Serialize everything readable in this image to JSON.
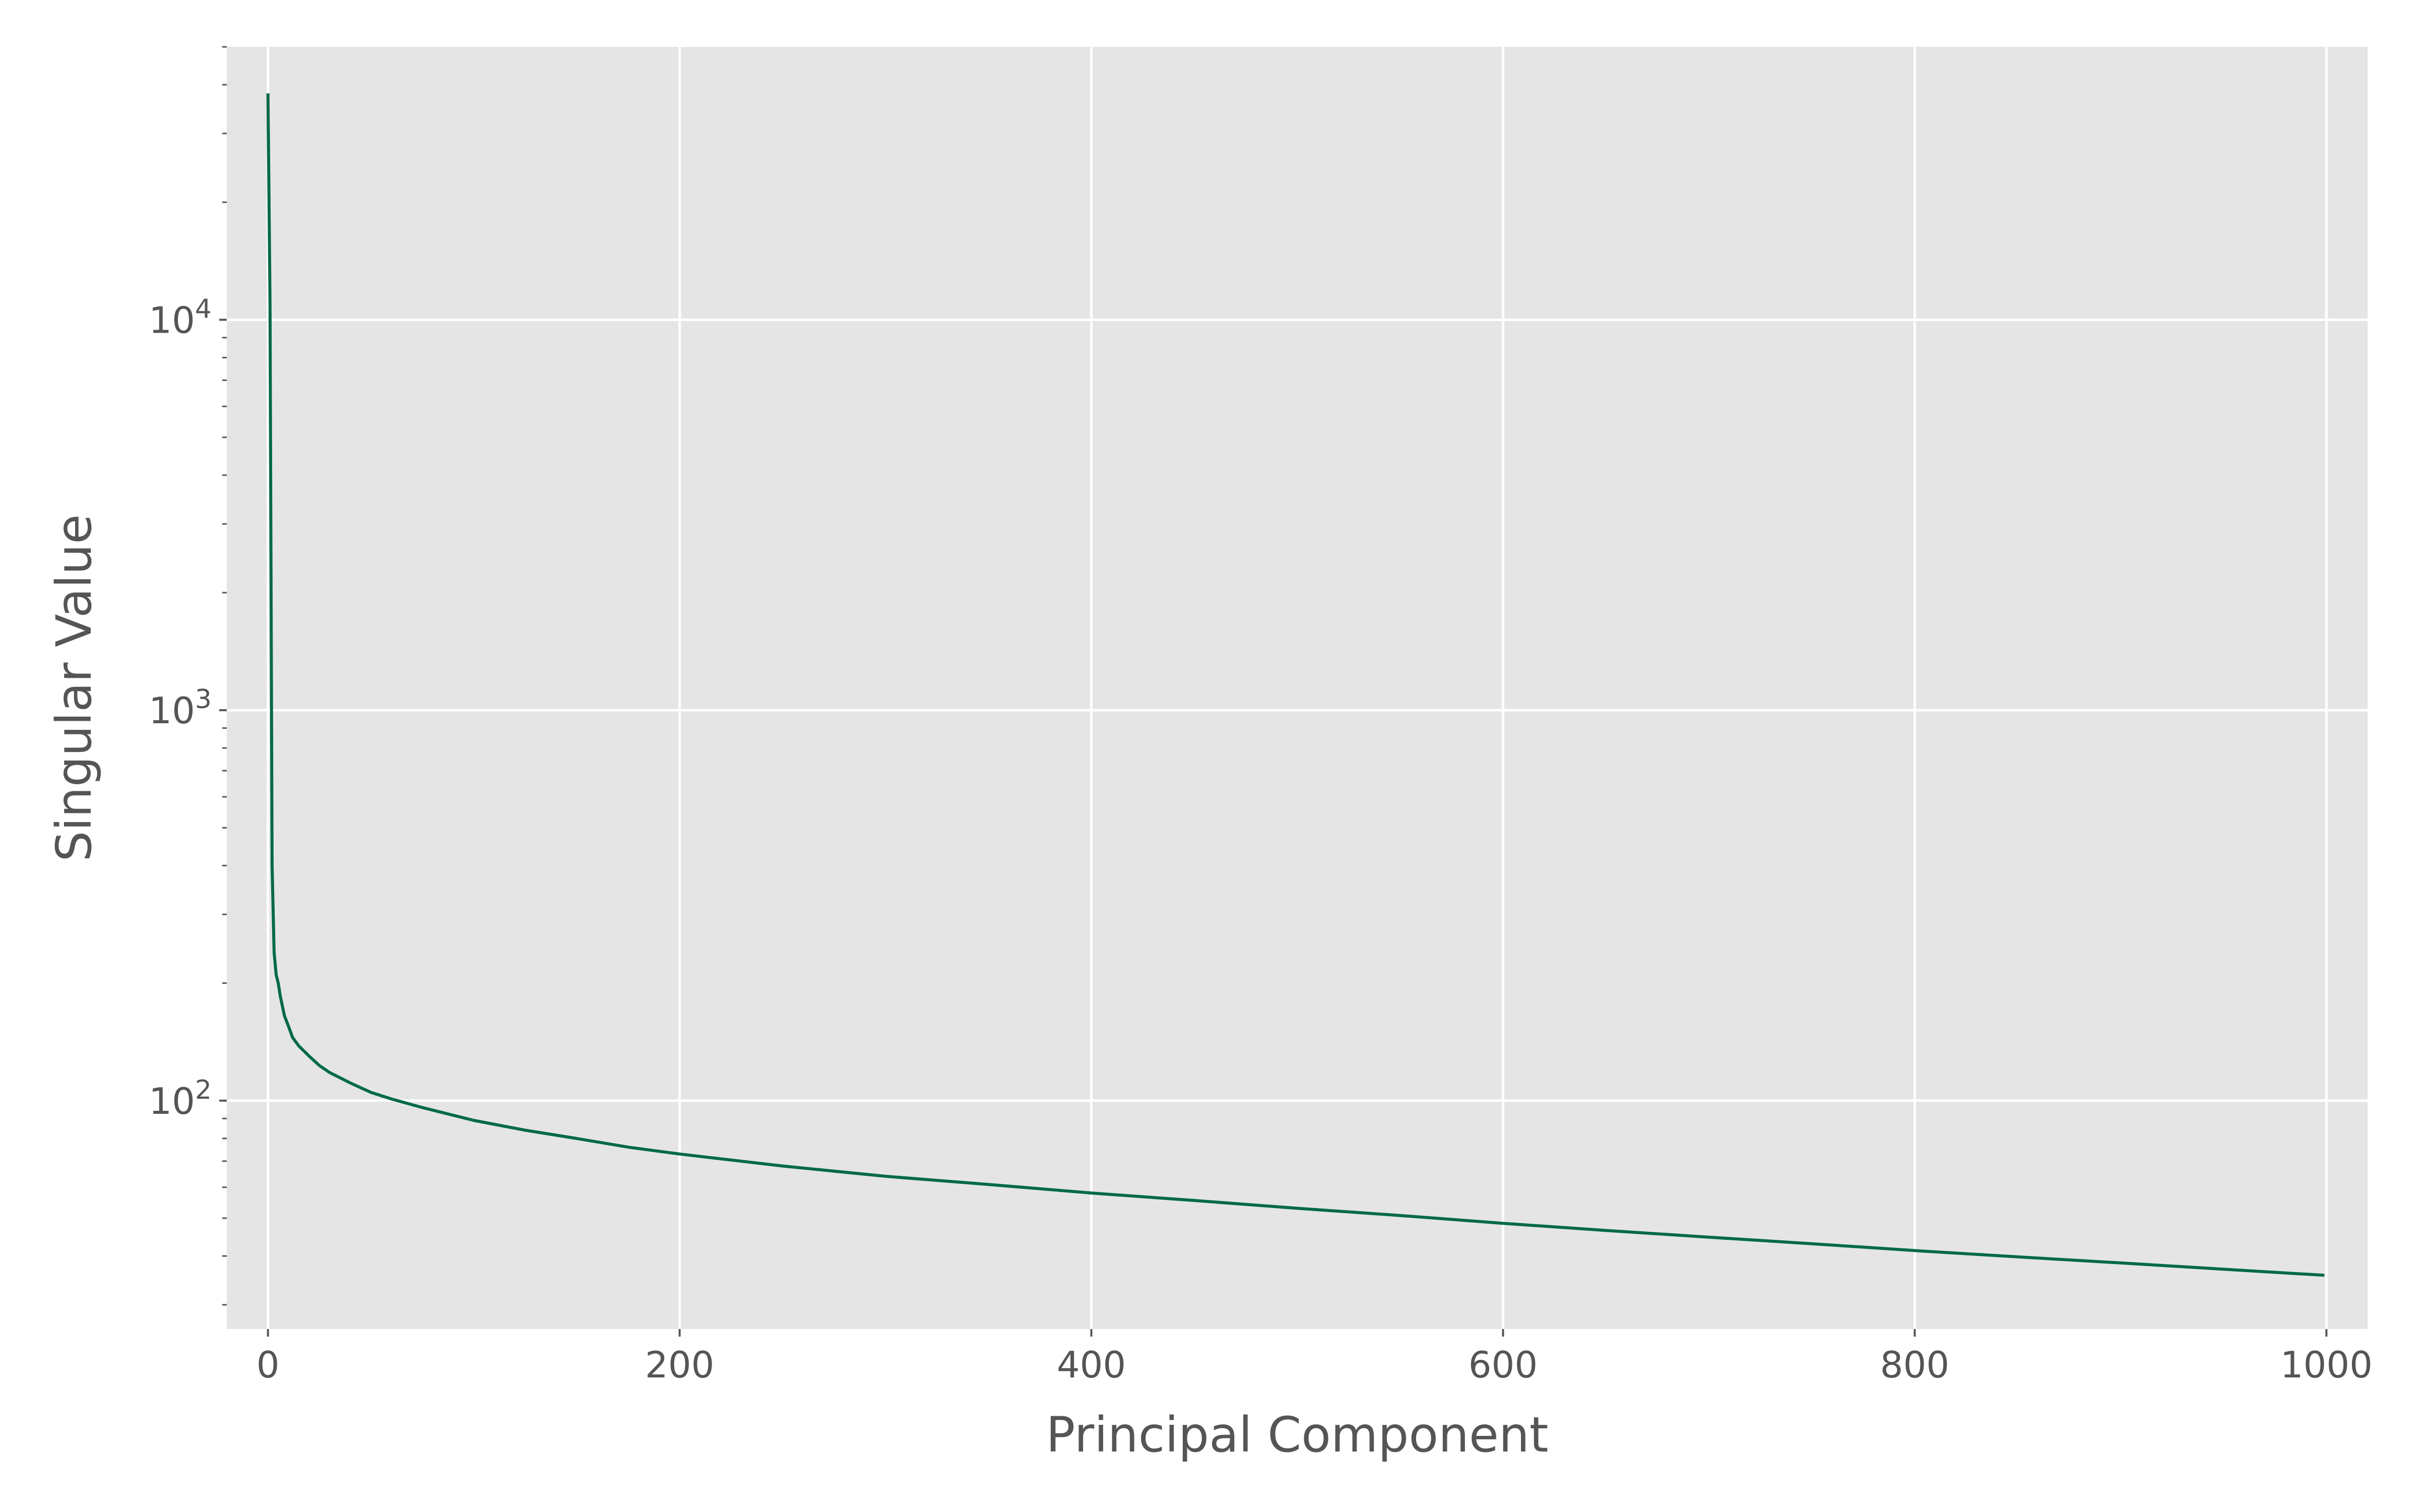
{
  "chart_data": {
    "type": "line",
    "title": "",
    "xlabel": "Principal Component",
    "ylabel": "Singular Value",
    "xlim": [
      -20,
      1020
    ],
    "ylim": [
      26,
      50000
    ],
    "yscale": "log",
    "grid": true,
    "x_ticks": [
      0,
      200,
      400,
      600,
      800,
      1000
    ],
    "y_ticks": [
      {
        "value": 100,
        "base": "10",
        "exp": "2"
      },
      {
        "value": 1000,
        "base": "10",
        "exp": "3"
      },
      {
        "value": 10000,
        "base": "10",
        "exp": "4"
      }
    ],
    "colors": {
      "line": "#00694a",
      "plot_background": "#e5e5e5",
      "grid": "#ffffff",
      "text": "#555555"
    },
    "series": [
      {
        "x": [
          0,
          1,
          2,
          3,
          4,
          5,
          6,
          8,
          10,
          12,
          15,
          20,
          25,
          30,
          40,
          50,
          60,
          75,
          100,
          125,
          150,
          175,
          200,
          250,
          300,
          350,
          400,
          450,
          500,
          550,
          600,
          650,
          700,
          750,
          800,
          850,
          900,
          950,
          999
        ],
        "y": [
          38000,
          11000,
          400,
          240,
          210,
          200,
          185,
          165,
          155,
          145,
          138,
          130,
          123,
          118,
          111,
          105,
          101,
          96,
          89,
          84,
          80,
          76,
          73,
          68,
          64,
          61,
          58,
          55.5,
          53,
          50.8,
          48.5,
          46.5,
          44.7,
          43,
          41.3,
          39.8,
          38.4,
          37,
          35.7
        ]
      }
    ]
  }
}
